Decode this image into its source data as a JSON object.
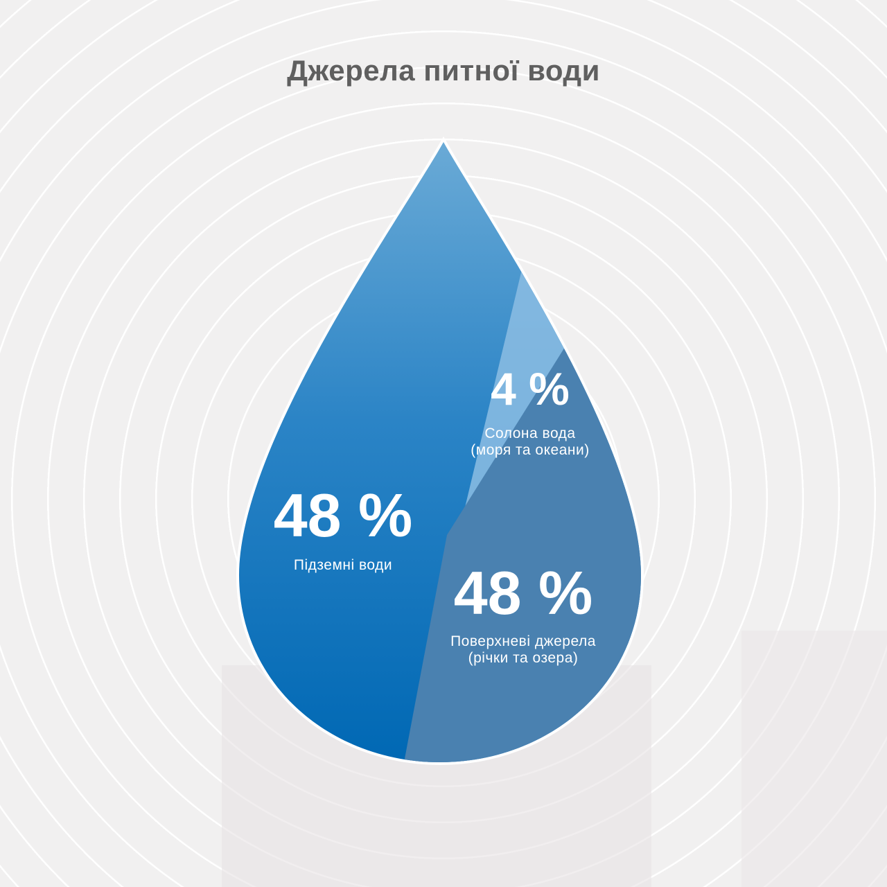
{
  "chart_data": {
    "type": "pie",
    "title": "Джерела питної води",
    "slices": [
      {
        "value_label": "48 %",
        "value": 48,
        "label": "Підземні води",
        "color": "#0a6fbc"
      },
      {
        "value_label": "4 %",
        "value": 4,
        "label_line1": "Солона вода",
        "label_line2": "(моря та океани)",
        "color": "#8cbde3"
      },
      {
        "value_label": "48 %",
        "value": 48,
        "label_line1": "Поверхневі джерела",
        "label_line2": "(річки та озера)",
        "color": "#4a81b0"
      }
    ]
  }
}
